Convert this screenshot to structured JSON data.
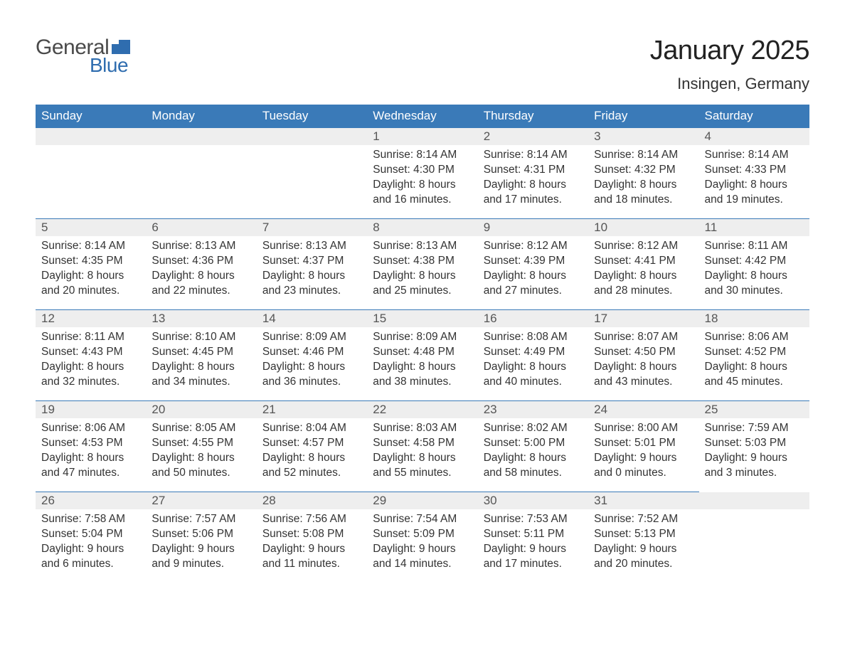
{
  "logo": {
    "word1": "General",
    "word2": "Blue",
    "text_color1": "#4a4a4a",
    "text_color2": "#2f6daf",
    "flag_color": "#2f6daf"
  },
  "title": "January 2025",
  "location": "Insingen, Germany",
  "colors": {
    "header_bg": "#3a7ab8",
    "header_text": "#ffffff",
    "day_border": "#3a7ab8",
    "daynum_bg": "#eeeeee",
    "body_text": "#333333",
    "page_bg": "#ffffff"
  },
  "column_headers": [
    "Sunday",
    "Monday",
    "Tuesday",
    "Wednesday",
    "Thursday",
    "Friday",
    "Saturday"
  ],
  "weeks": [
    [
      null,
      null,
      null,
      {
        "day": "1",
        "sunrise": "8:14 AM",
        "sunset": "4:30 PM",
        "daylight": "8 hours and 16 minutes."
      },
      {
        "day": "2",
        "sunrise": "8:14 AM",
        "sunset": "4:31 PM",
        "daylight": "8 hours and 17 minutes."
      },
      {
        "day": "3",
        "sunrise": "8:14 AM",
        "sunset": "4:32 PM",
        "daylight": "8 hours and 18 minutes."
      },
      {
        "day": "4",
        "sunrise": "8:14 AM",
        "sunset": "4:33 PM",
        "daylight": "8 hours and 19 minutes."
      }
    ],
    [
      {
        "day": "5",
        "sunrise": "8:14 AM",
        "sunset": "4:35 PM",
        "daylight": "8 hours and 20 minutes."
      },
      {
        "day": "6",
        "sunrise": "8:13 AM",
        "sunset": "4:36 PM",
        "daylight": "8 hours and 22 minutes."
      },
      {
        "day": "7",
        "sunrise": "8:13 AM",
        "sunset": "4:37 PM",
        "daylight": "8 hours and 23 minutes."
      },
      {
        "day": "8",
        "sunrise": "8:13 AM",
        "sunset": "4:38 PM",
        "daylight": "8 hours and 25 minutes."
      },
      {
        "day": "9",
        "sunrise": "8:12 AM",
        "sunset": "4:39 PM",
        "daylight": "8 hours and 27 minutes."
      },
      {
        "day": "10",
        "sunrise": "8:12 AM",
        "sunset": "4:41 PM",
        "daylight": "8 hours and 28 minutes."
      },
      {
        "day": "11",
        "sunrise": "8:11 AM",
        "sunset": "4:42 PM",
        "daylight": "8 hours and 30 minutes."
      }
    ],
    [
      {
        "day": "12",
        "sunrise": "8:11 AM",
        "sunset": "4:43 PM",
        "daylight": "8 hours and 32 minutes."
      },
      {
        "day": "13",
        "sunrise": "8:10 AM",
        "sunset": "4:45 PM",
        "daylight": "8 hours and 34 minutes."
      },
      {
        "day": "14",
        "sunrise": "8:09 AM",
        "sunset": "4:46 PM",
        "daylight": "8 hours and 36 minutes."
      },
      {
        "day": "15",
        "sunrise": "8:09 AM",
        "sunset": "4:48 PM",
        "daylight": "8 hours and 38 minutes."
      },
      {
        "day": "16",
        "sunrise": "8:08 AM",
        "sunset": "4:49 PM",
        "daylight": "8 hours and 40 minutes."
      },
      {
        "day": "17",
        "sunrise": "8:07 AM",
        "sunset": "4:50 PM",
        "daylight": "8 hours and 43 minutes."
      },
      {
        "day": "18",
        "sunrise": "8:06 AM",
        "sunset": "4:52 PM",
        "daylight": "8 hours and 45 minutes."
      }
    ],
    [
      {
        "day": "19",
        "sunrise": "8:06 AM",
        "sunset": "4:53 PM",
        "daylight": "8 hours and 47 minutes."
      },
      {
        "day": "20",
        "sunrise": "8:05 AM",
        "sunset": "4:55 PM",
        "daylight": "8 hours and 50 minutes."
      },
      {
        "day": "21",
        "sunrise": "8:04 AM",
        "sunset": "4:57 PM",
        "daylight": "8 hours and 52 minutes."
      },
      {
        "day": "22",
        "sunrise": "8:03 AM",
        "sunset": "4:58 PM",
        "daylight": "8 hours and 55 minutes."
      },
      {
        "day": "23",
        "sunrise": "8:02 AM",
        "sunset": "5:00 PM",
        "daylight": "8 hours and 58 minutes."
      },
      {
        "day": "24",
        "sunrise": "8:00 AM",
        "sunset": "5:01 PM",
        "daylight": "9 hours and 0 minutes."
      },
      {
        "day": "25",
        "sunrise": "7:59 AM",
        "sunset": "5:03 PM",
        "daylight": "9 hours and 3 minutes."
      }
    ],
    [
      {
        "day": "26",
        "sunrise": "7:58 AM",
        "sunset": "5:04 PM",
        "daylight": "9 hours and 6 minutes."
      },
      {
        "day": "27",
        "sunrise": "7:57 AM",
        "sunset": "5:06 PM",
        "daylight": "9 hours and 9 minutes."
      },
      {
        "day": "28",
        "sunrise": "7:56 AM",
        "sunset": "5:08 PM",
        "daylight": "9 hours and 11 minutes."
      },
      {
        "day": "29",
        "sunrise": "7:54 AM",
        "sunset": "5:09 PM",
        "daylight": "9 hours and 14 minutes."
      },
      {
        "day": "30",
        "sunrise": "7:53 AM",
        "sunset": "5:11 PM",
        "daylight": "9 hours and 17 minutes."
      },
      {
        "day": "31",
        "sunrise": "7:52 AM",
        "sunset": "5:13 PM",
        "daylight": "9 hours and 20 minutes."
      },
      null
    ]
  ],
  "labels": {
    "sunrise_prefix": "Sunrise: ",
    "sunset_prefix": "Sunset: ",
    "daylight_prefix": "Daylight: "
  }
}
